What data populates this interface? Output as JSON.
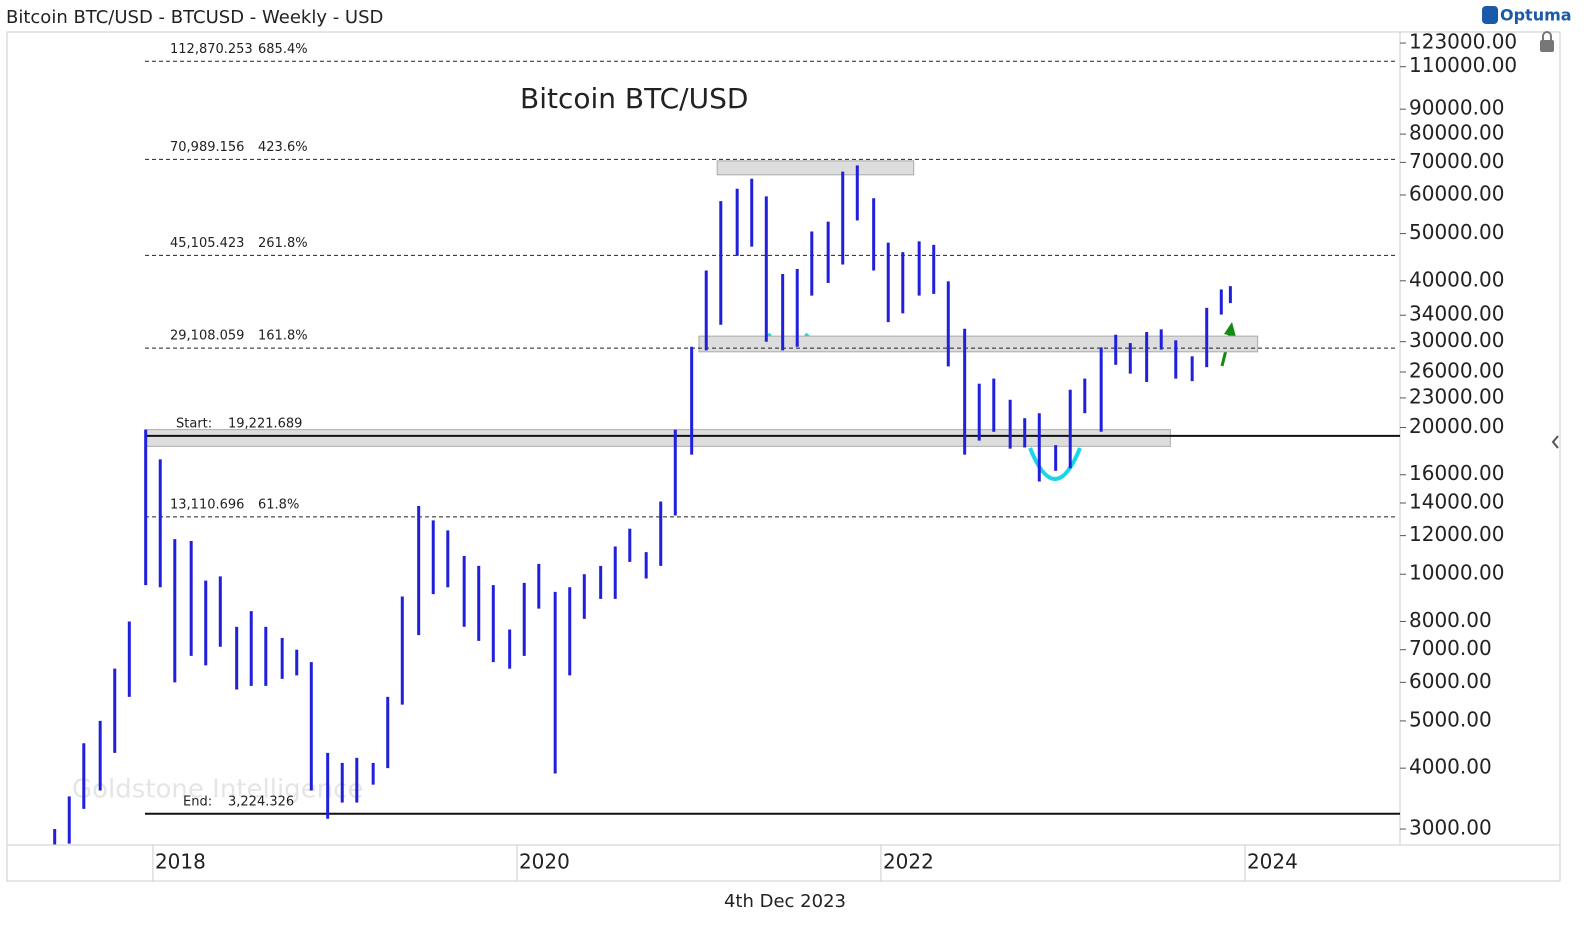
{
  "header": "Bitcoin BTC/USD - BTCUSD - Weekly - USD",
  "logo": "Optuma",
  "date_label": "4th Dec 2023",
  "watermark": "Goldstone Intelligence",
  "chart_data": {
    "type": "hilo",
    "title": "Bitcoin BTC/USD",
    "log_scale": true,
    "color": "#1f1fdc",
    "xlim": [
      2017.198,
      2024.852
    ],
    "xticks": [
      2018,
      2020,
      2022,
      2024
    ],
    "ylim": [
      2782,
      129600
    ],
    "yticks": [
      {
        "value": 123000,
        "label": "123000.00"
      },
      {
        "value": 110000,
        "label": "110000.00"
      },
      {
        "value": 90000,
        "label": "90000.00"
      },
      {
        "value": 80000,
        "label": "80000.00"
      },
      {
        "value": 70000,
        "label": "70000.00"
      },
      {
        "value": 60000,
        "label": "60000.00"
      },
      {
        "value": 50000,
        "label": "50000.00"
      },
      {
        "value": 40000,
        "label": "40000.00"
      },
      {
        "value": 34000,
        "label": "34000.00"
      },
      {
        "value": 30000,
        "label": "30000.00"
      },
      {
        "value": 26000,
        "label": "26000.00"
      },
      {
        "value": 23000,
        "label": "23000.00"
      },
      {
        "value": 20000,
        "label": "20000.00"
      },
      {
        "value": 16000,
        "label": "16000.00"
      },
      {
        "value": 14000,
        "label": "14000.00"
      },
      {
        "value": 12000,
        "label": "12000.00"
      },
      {
        "value": 10000,
        "label": "10000.00"
      },
      {
        "value": 8000,
        "label": "8000.00"
      },
      {
        "value": 7000,
        "label": "7000.00"
      },
      {
        "value": 6000,
        "label": "6000.00"
      },
      {
        "value": 5000,
        "label": "5000.00"
      },
      {
        "value": 4000,
        "label": "4000.00"
      },
      {
        "value": 3000,
        "label": "3000.00"
      }
    ],
    "x": [
      2017.46,
      2017.54,
      2017.62,
      2017.71,
      2017.79,
      2017.87,
      2017.96,
      2018.04,
      2018.12,
      2018.21,
      2018.29,
      2018.37,
      2018.46,
      2018.54,
      2018.62,
      2018.71,
      2018.79,
      2018.87,
      2018.96,
      2019.04,
      2019.12,
      2019.21,
      2019.29,
      2019.37,
      2019.46,
      2019.54,
      2019.62,
      2019.71,
      2019.79,
      2019.87,
      2019.96,
      2020.04,
      2020.12,
      2020.21,
      2020.29,
      2020.37,
      2020.46,
      2020.54,
      2020.62,
      2020.71,
      2020.79,
      2020.87,
      2020.96,
      2021.04,
      2021.12,
      2021.21,
      2021.29,
      2021.37,
      2021.46,
      2021.54,
      2021.62,
      2021.71,
      2021.79,
      2021.87,
      2021.96,
      2022.04,
      2022.12,
      2022.21,
      2022.29,
      2022.37,
      2022.46,
      2022.54,
      2022.62,
      2022.71,
      2022.79,
      2022.87,
      2022.96,
      2023.04,
      2023.12,
      2023.21,
      2023.29,
      2023.37,
      2023.46,
      2023.54,
      2023.62,
      2023.71,
      2023.79,
      2023.87,
      2023.92
    ],
    "high": [
      3000,
      3500,
      4500,
      5000,
      6400,
      8000,
      19800,
      17200,
      11800,
      11700,
      9700,
      9900,
      7800,
      8400,
      7800,
      7400,
      7000,
      6600,
      4300,
      4100,
      4200,
      4100,
      5600,
      9000,
      13800,
      12900,
      12300,
      10900,
      10400,
      9500,
      7700,
      9600,
      10500,
      9200,
      9400,
      10000,
      10400,
      11400,
      12400,
      11100,
      14100,
      19800,
      29300,
      42000,
      58300,
      61800,
      64800,
      59600,
      41300,
      42300,
      50500,
      52900,
      67000,
      69000,
      59100,
      47900,
      45800,
      48200,
      47400,
      39900,
      31900,
      24600,
      25200,
      22800,
      20900,
      21400,
      18400,
      23900,
      25200,
      29200,
      31000,
      29800,
      31400,
      31800,
      30200,
      28000,
      35200,
      38400,
      39000
    ],
    "low": [
      2790,
      2800,
      3300,
      3600,
      4300,
      5600,
      9500,
      9400,
      6000,
      6800,
      6500,
      7100,
      5800,
      5900,
      5900,
      6100,
      6200,
      3600,
      3150,
      3400,
      3400,
      3700,
      4000,
      5400,
      7500,
      9100,
      9400,
      7800,
      7300,
      6600,
      6400,
      6800,
      8500,
      3900,
      6200,
      8100,
      8900,
      8900,
      10600,
      9800,
      10400,
      13200,
      17600,
      28800,
      32500,
      45000,
      47000,
      30000,
      28800,
      29300,
      37300,
      39600,
      43200,
      53200,
      42000,
      32900,
      34300,
      37300,
      37600,
      26700,
      17600,
      18800,
      19600,
      18100,
      18200,
      15500,
      16300,
      16500,
      21400,
      19600,
      26900,
      25800,
      24800,
      28900,
      25200,
      24900,
      26600,
      34100,
      36000
    ],
    "levels": [
      {
        "value": 112870.253,
        "label": "112,870.253",
        "percent": "685.4%"
      },
      {
        "value": 70989.156,
        "label": "70,989.156",
        "percent": "423.6%"
      },
      {
        "value": 45105.423,
        "label": "45,105.423",
        "percent": "261.8%"
      },
      {
        "value": 29108.059,
        "label": "29,108.059",
        "percent": "161.8%"
      },
      {
        "value": 13110.696,
        "label": "13,110.696",
        "percent": "61.8%"
      }
    ],
    "bounds": [
      {
        "name": "Start:",
        "value": 19221.689,
        "label": "19,221.689"
      },
      {
        "name": "End:",
        "value": 3224.326,
        "label": "3,224.326"
      }
    ],
    "zones": [
      {
        "x0": 2021.1,
        "x1": 2022.18,
        "y0": 66000,
        "y1": 70500
      },
      {
        "x0": 2021.0,
        "x1": 2024.07,
        "y0": 28600,
        "y1": 30800
      },
      {
        "x0": 2017.96,
        "x1": 2023.59,
        "y0": 18300,
        "y1": 19800
      }
    ]
  }
}
